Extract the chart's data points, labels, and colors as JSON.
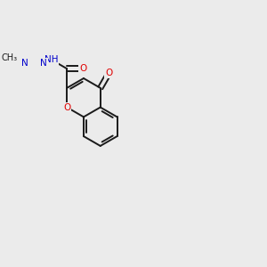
{
  "background_color": "#ebebeb",
  "bond_color": "#1a1a1a",
  "bond_width": 1.4,
  "atom_colors": {
    "O": "#e00000",
    "N": "#0000cc",
    "C": "#1a1a1a"
  },
  "font_size": 7.0,
  "figsize": [
    3.0,
    3.0
  ],
  "dpi": 100
}
